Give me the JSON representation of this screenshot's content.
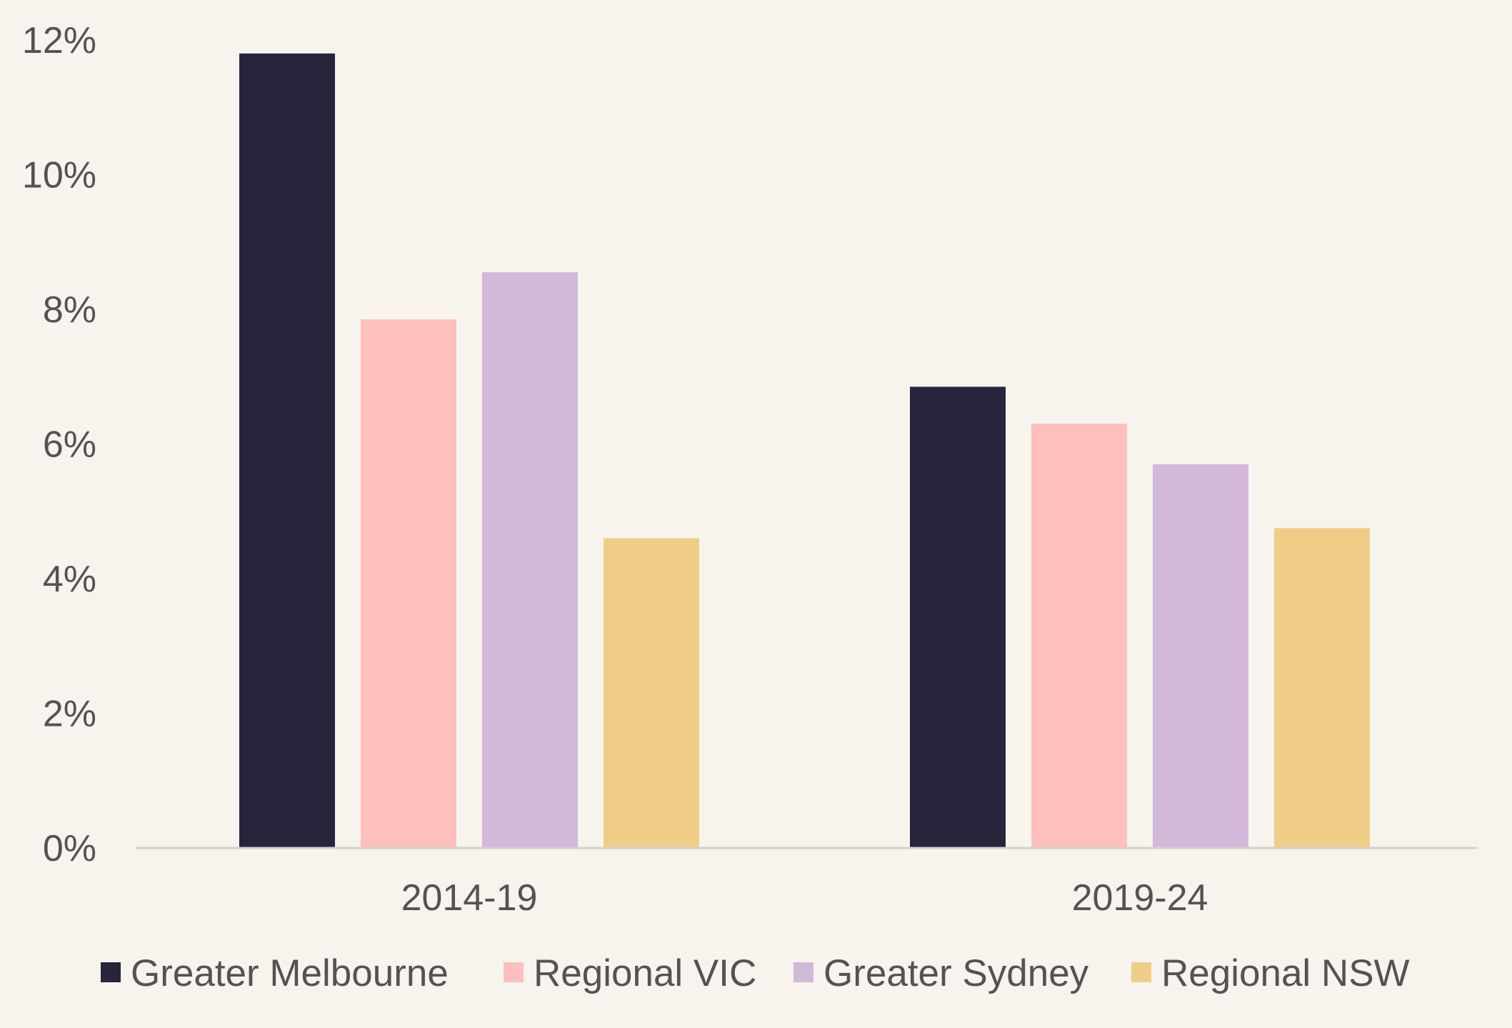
{
  "chart_data": {
    "type": "bar",
    "categories": [
      "2014-19",
      "2019-24"
    ],
    "series": [
      {
        "name": "Greater Melbourne",
        "color": "#28243b",
        "values": [
          11.8,
          6.85
        ]
      },
      {
        "name": "Regional VIC",
        "color": "#ffbfbc",
        "values": [
          7.85,
          6.3
        ]
      },
      {
        "name": "Greater Sydney",
        "color": "#d2b8d9",
        "values": [
          8.55,
          5.7
        ]
      },
      {
        "name": "Regional NSW",
        "color": "#f0cd87",
        "values": [
          4.6,
          4.75
        ]
      }
    ],
    "yticks": [
      "0%",
      "2%",
      "4%",
      "6%",
      "8%",
      "10%",
      "12%"
    ],
    "ylim": [
      0,
      12
    ],
    "grid": false,
    "legend_position": "bottom",
    "title": "",
    "xlabel": "",
    "ylabel": ""
  }
}
